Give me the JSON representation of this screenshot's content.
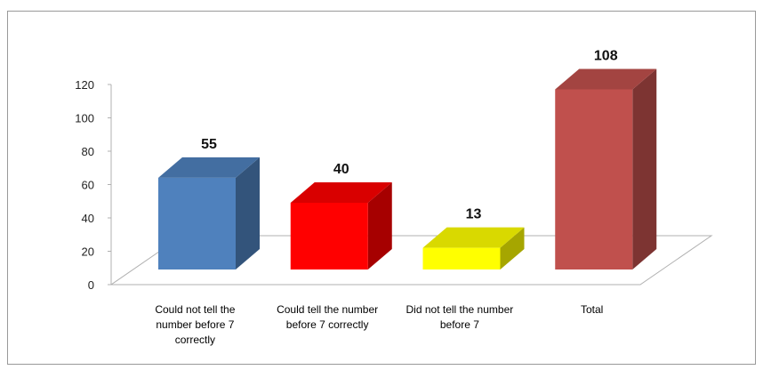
{
  "chart_data": {
    "type": "bar",
    "categories": [
      "Could not tell the number before 7 correctly",
      "Could tell the number before 7 correctly",
      "Did not tell the number before 7",
      "Total"
    ],
    "values": [
      55,
      40,
      13,
      108
    ],
    "colors": [
      "#4f81bd",
      "#ff0000",
      "#ffff00",
      "#c0504d"
    ],
    "ylim": [
      0,
      120
    ],
    "yticks": [
      0,
      20,
      40,
      60,
      80,
      100,
      120
    ],
    "grid": false
  }
}
